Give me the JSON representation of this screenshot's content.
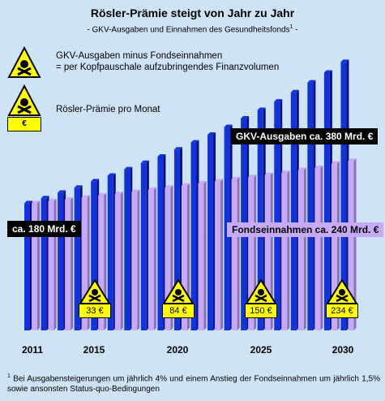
{
  "chart_data": {
    "type": "bar",
    "title": "Rösler-Prämie steigt von Jahr zu Jahr",
    "subtitle": "- GKV-Ausgaben und Einnahmen des Gesundheitsfonds",
    "subtitle_footnote_mark": "1",
    "x": [
      2011,
      2012,
      2013,
      2014,
      2015,
      2016,
      2017,
      2018,
      2019,
      2020,
      2021,
      2022,
      2023,
      2024,
      2025,
      2026,
      2027,
      2028,
      2029,
      2030
    ],
    "x_tick_labels": [
      "2011",
      "2015",
      "2020",
      "2025",
      "2030"
    ],
    "ylabel": "",
    "y_unit": "Mrd. €",
    "ylim": [
      0,
      400
    ],
    "grid": false,
    "series": [
      {
        "name": "GKV-Ausgaben",
        "color": "#1133dd",
        "values": [
          180,
          187,
          195,
          202,
          211,
          219,
          228,
          237,
          246,
          256,
          266,
          277,
          288,
          300,
          312,
          324,
          337,
          351,
          365,
          380
        ]
      },
      {
        "name": "Fondseinnahmen",
        "color": "#c8a9f5",
        "values": [
          180,
          183,
          185,
          188,
          191,
          193,
          196,
          199,
          202,
          205,
          208,
          211,
          214,
          217,
          220,
          223,
          227,
          230,
          236,
          240
        ]
      }
    ]
  },
  "legend": {
    "item1_line1": "GKV-Ausgaben minus Fondseinnahmen",
    "item1_line2": "= per Kopfpauschale aufzubringendes Finanzvolumen",
    "item2": "Rösler-Prämie  pro Monat",
    "euro_symbol": "€"
  },
  "annotations": {
    "start_value": "ca. 180 Mrd. €",
    "gkv_end": "GKV-Ausgaben ca. 380 Mrd. €",
    "fonds_end": "Fondseinnahmen ca. 240 Mrd. €"
  },
  "premiums": [
    {
      "year": 2015,
      "label": "33 €",
      "value": 33
    },
    {
      "year": 2020,
      "label": "84 €",
      "value": 84
    },
    {
      "year": 2025,
      "label": "150 €",
      "value": 150
    },
    {
      "year": 2030,
      "label": "234 €",
      "value": 234
    }
  ],
  "footnote": {
    "mark": "1",
    "text": "Bei Ausgabensteigerungen um jährlich 4% und einem Anstieg der Fondseinnahmen um jährlich 1,5% sowie ansonsten Status-quo-Bedingungen"
  },
  "colors": {
    "background": "#cfe3f7",
    "gkv_bar": "#1133dd",
    "fonds_bar": "#c8a9f5",
    "hazard_yellow": "#ffff00"
  }
}
